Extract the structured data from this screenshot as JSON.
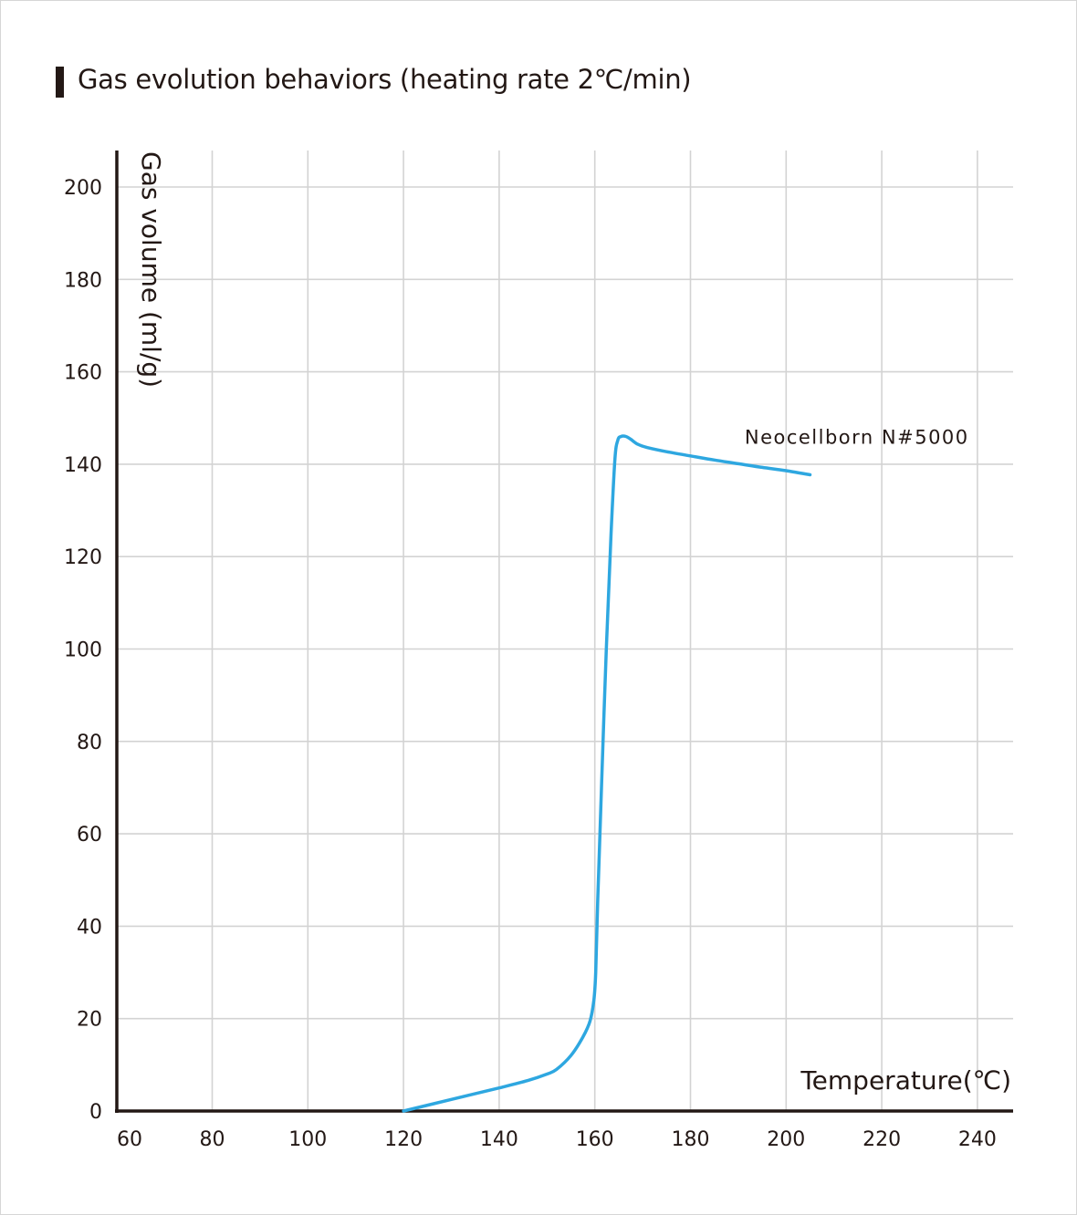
{
  "chart_data": {
    "type": "line",
    "title": "Gas evolution behaviors (heating rate 2℃/min)",
    "xlabel": "Temperature(℃)",
    "ylabel": "Gas volume (ml/g)",
    "xlim": [
      60,
      240
    ],
    "ylim": [
      0,
      200
    ],
    "x_ticks": [
      60,
      80,
      100,
      120,
      140,
      160,
      180,
      200,
      220,
      240
    ],
    "y_ticks": [
      0,
      20,
      40,
      60,
      80,
      100,
      120,
      140,
      160,
      180,
      200
    ],
    "grid": true,
    "series": [
      {
        "name": "Neocellborn N#5000",
        "color": "#2ea7e0",
        "points": [
          [
            120,
            0
          ],
          [
            130,
            2.5
          ],
          [
            140,
            5
          ],
          [
            146,
            6.6
          ],
          [
            150,
            8
          ],
          [
            152,
            9
          ],
          [
            155,
            12
          ],
          [
            157.5,
            16
          ],
          [
            159,
            19.5
          ],
          [
            159.8,
            24
          ],
          [
            160.2,
            30
          ],
          [
            160.6,
            45
          ],
          [
            161.4,
            70
          ],
          [
            162.4,
            100
          ],
          [
            163.4,
            125
          ],
          [
            164.2,
            141
          ],
          [
            164.8,
            145.2
          ],
          [
            165.5,
            146
          ],
          [
            166.5,
            146
          ],
          [
            167.5,
            145.4
          ],
          [
            169,
            144.3
          ],
          [
            171,
            143.6
          ],
          [
            175,
            142.7
          ],
          [
            180,
            141.8
          ],
          [
            185,
            140.9
          ],
          [
            190,
            140.1
          ],
          [
            195,
            139.3
          ],
          [
            200,
            138.6
          ],
          [
            205,
            137.7
          ]
        ]
      }
    ],
    "series_label": {
      "text": "Neocellborn N#5000",
      "x": 194,
      "y": 146
    }
  }
}
